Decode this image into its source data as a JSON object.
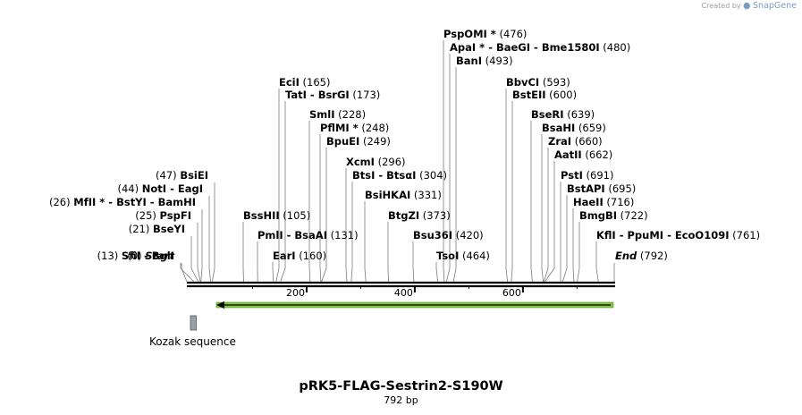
{
  "brand": {
    "created_by": "Created by",
    "name": "SnapGene",
    "icon": "snapgene-logo-icon"
  },
  "map": {
    "title": "pRK5-FLAG-Sestrin2-S190W",
    "length": "792 bp",
    "start_label": "Start",
    "end_label": "End",
    "start_pos": "(0)",
    "end_pos": "(792)",
    "ruler_ticks": [
      "200",
      "400",
      "600"
    ]
  },
  "features": [
    {
      "name": "Kozak sequence",
      "type": "misc",
      "start": 21,
      "end": 30,
      "color": "#9aa0a6"
    },
    {
      "name": "",
      "type": "cds-arrow",
      "start": 56,
      "end": 792,
      "direction": "reverse",
      "color": "#82c341"
    }
  ],
  "sites": [
    {
      "parts": [
        "SfiI",
        "BglI"
      ],
      "pos": "(13)",
      "stars": [
        false,
        false
      ]
    },
    {
      "parts": [
        "BseYI"
      ],
      "pos": "(21)",
      "stars": [
        false
      ]
    },
    {
      "parts": [
        "PspFI"
      ],
      "pos": "(25)",
      "stars": [
        false
      ]
    },
    {
      "parts": [
        "MfII",
        "BstYI",
        "BamHI"
      ],
      "pos": "(26)",
      "stars": [
        true,
        false,
        false
      ]
    },
    {
      "parts": [
        "NotI",
        "EagI"
      ],
      "pos": "(44)",
      "stars": [
        false,
        false
      ]
    },
    {
      "parts": [
        "BsiEI"
      ],
      "pos": "(47)",
      "stars": [
        false
      ]
    },
    {
      "parts": [
        "BssHII"
      ],
      "pos": "(105)",
      "stars": [
        false
      ]
    },
    {
      "parts": [
        "PmlI",
        "BsaAI"
      ],
      "pos": "(131)",
      "stars": [
        false,
        false
      ]
    },
    {
      "parts": [
        "EarI"
      ],
      "pos": "(160)",
      "stars": [
        false
      ]
    },
    {
      "parts": [
        "EciI"
      ],
      "pos": "(165)",
      "stars": [
        false
      ]
    },
    {
      "parts": [
        "TatI",
        "BsrGI"
      ],
      "pos": "(173)",
      "stars": [
        false,
        false
      ]
    },
    {
      "parts": [
        "SmlI"
      ],
      "pos": "(228)",
      "stars": [
        false
      ]
    },
    {
      "parts": [
        "PflMI"
      ],
      "pos": "(248)",
      "stars": [
        true
      ]
    },
    {
      "parts": [
        "BpuEI"
      ],
      "pos": "(249)",
      "stars": [
        false
      ]
    },
    {
      "parts": [
        "XcmI"
      ],
      "pos": "(296)",
      "stars": [
        false
      ]
    },
    {
      "parts": [
        "BtsI",
        "BtsαI"
      ],
      "pos": "(304)",
      "stars": [
        false,
        false
      ]
    },
    {
      "parts": [
        "BsiHKAI"
      ],
      "pos": "(331)",
      "stars": [
        false
      ]
    },
    {
      "parts": [
        "BtgZI"
      ],
      "pos": "(373)",
      "stars": [
        false
      ]
    },
    {
      "parts": [
        "Bsu36I"
      ],
      "pos": "(420)",
      "stars": [
        false
      ]
    },
    {
      "parts": [
        "TsoI"
      ],
      "pos": "(464)",
      "stars": [
        false
      ]
    },
    {
      "parts": [
        "PspOMI"
      ],
      "pos": "(476)",
      "stars": [
        true
      ]
    },
    {
      "parts": [
        "ApaI",
        "BaeGI",
        "Bme1580I"
      ],
      "pos": "(480)",
      "stars": [
        true,
        false,
        false
      ]
    },
    {
      "parts": [
        "BanI"
      ],
      "pos": "(493)",
      "stars": [
        false
      ]
    },
    {
      "parts": [
        "BbvCI"
      ],
      "pos": "(593)",
      "stars": [
        false
      ]
    },
    {
      "parts": [
        "BstEII"
      ],
      "pos": "(600)",
      "stars": [
        false
      ]
    },
    {
      "parts": [
        "BseRI"
      ],
      "pos": "(639)",
      "stars": [
        false
      ]
    },
    {
      "parts": [
        "BsaHI"
      ],
      "pos": "(659)",
      "stars": [
        false
      ]
    },
    {
      "parts": [
        "ZraI"
      ],
      "pos": "(660)",
      "stars": [
        false
      ]
    },
    {
      "parts": [
        "AatII"
      ],
      "pos": "(662)",
      "stars": [
        false
      ]
    },
    {
      "parts": [
        "PstI"
      ],
      "pos": "(691)",
      "stars": [
        false
      ]
    },
    {
      "parts": [
        "BstAPI"
      ],
      "pos": "(695)",
      "stars": [
        false
      ]
    },
    {
      "parts": [
        "HaeII"
      ],
      "pos": "(716)",
      "stars": [
        false
      ]
    },
    {
      "parts": [
        "BmgBI"
      ],
      "pos": "(722)",
      "stars": [
        false
      ]
    },
    {
      "parts": [
        "KflI",
        "PpuMI",
        "EcoO109I"
      ],
      "pos": "(761)",
      "stars": [
        false,
        false,
        false
      ]
    }
  ]
}
